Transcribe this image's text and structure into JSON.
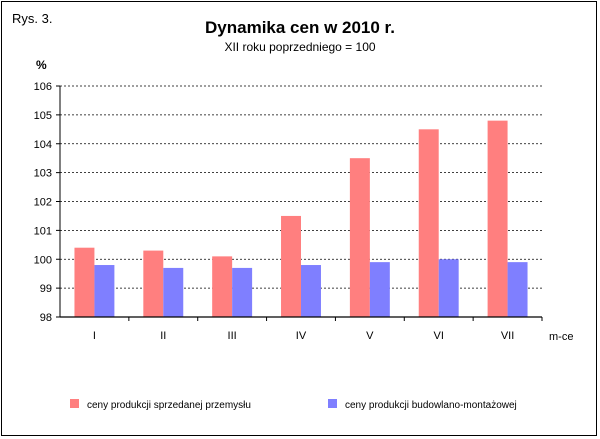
{
  "figure_label": "Rys. 3.",
  "chart_data": {
    "type": "bar",
    "title": "Dynamika cen w 2010 r.",
    "subtitle": "XII roku poprzedniego = 100",
    "ylabel": "%",
    "xlabel": "m-ce",
    "categories": [
      "I",
      "II",
      "III",
      "IV",
      "V",
      "VI",
      "VII"
    ],
    "ylim": [
      98,
      106
    ],
    "yticks": [
      "98",
      "99",
      "100",
      "101",
      "102",
      "103",
      "104",
      "105",
      "106"
    ],
    "grid": "horizontal dashed",
    "legend_position": "bottom",
    "series": [
      {
        "name": "ceny produkcji sprzedanej przemysłu",
        "color": "#FF7F7F",
        "values": [
          100.4,
          100.3,
          100.1,
          101.5,
          103.5,
          104.5,
          104.8
        ]
      },
      {
        "name": "ceny produkcji budowlano-montażowej",
        "color": "#7F7FFF",
        "values": [
          99.8,
          99.7,
          99.7,
          99.8,
          99.9,
          100.0,
          99.9
        ]
      }
    ]
  }
}
